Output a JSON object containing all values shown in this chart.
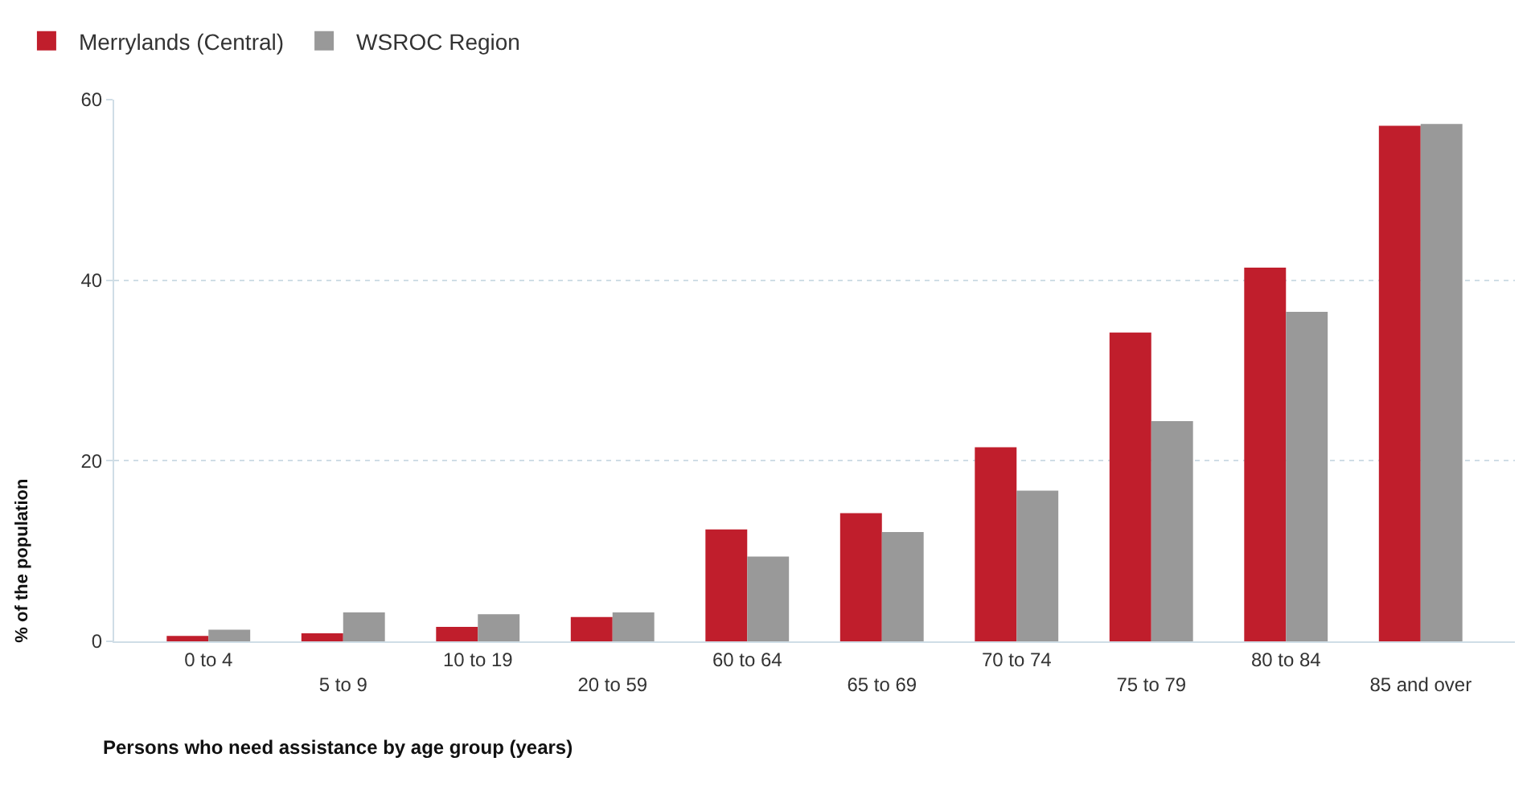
{
  "chart_data": {
    "type": "bar",
    "xlabel": "Persons who need assistance by age group (years)",
    "ylabel": "% of the population",
    "categories": [
      "0 to 4",
      "5 to 9",
      "10 to 19",
      "20 to 59",
      "60 to 64",
      "65 to 69",
      "70 to 74",
      "75 to 79",
      "80 to 84",
      "85 and over"
    ],
    "series": [
      {
        "name": "Merrylands (Central)",
        "color": "#c01e2c",
        "values": [
          0.6,
          0.9,
          1.6,
          2.7,
          12.4,
          14.2,
          21.5,
          34.2,
          41.4,
          57.1
        ]
      },
      {
        "name": "WSROC Region",
        "color": "#999999",
        "values": [
          1.3,
          3.2,
          3.0,
          3.2,
          9.4,
          12.1,
          16.7,
          24.4,
          36.5,
          57.3
        ]
      }
    ],
    "ylim": [
      0,
      60
    ],
    "yticks": [
      0,
      20,
      40,
      60
    ],
    "grid": "y",
    "legend": "top left"
  }
}
